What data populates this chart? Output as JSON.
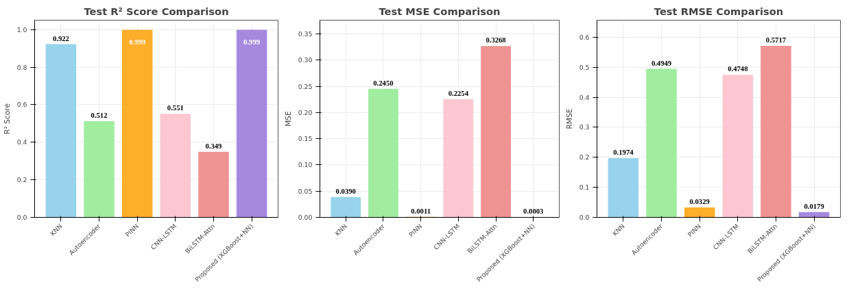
{
  "chart_data": [
    {
      "type": "bar",
      "title": "Test R² Score Comparison",
      "ylabel": "R² Score",
      "categories": [
        "KNN",
        "Autoencoder",
        "PINN",
        "CNN-LSTM",
        "BiLSTM-Attn",
        "Proposed (XGBoost+NN)"
      ],
      "values": [
        0.922,
        0.512,
        0.999,
        0.551,
        0.349,
        0.999
      ],
      "value_labels": [
        "0.922",
        "0.512",
        "0.999",
        "0.551",
        "0.349",
        "0.999"
      ],
      "colors": [
        "#97d3ec",
        "#a0eda0",
        "#fdae2a",
        "#fcc7d1",
        "#f09393",
        "#a689df"
      ],
      "ylim": [
        0,
        1.05
      ],
      "yticks": [
        {
          "value": 0,
          "label": "0.0"
        },
        0.2,
        0.4,
        0.6,
        0.8,
        {
          "value": 1,
          "label": "1.0"
        }
      ],
      "grid": true
    },
    {
      "type": "bar",
      "title": "Test MSE Comparison",
      "ylabel": "MSE",
      "categories": [
        "KNN",
        "Autoencoder",
        "PINN",
        "CNN-LSTM",
        "BiLSTM-Attn",
        "Proposed (XGBoost+NN)"
      ],
      "values": [
        0.039,
        0.245,
        0.0011,
        0.2254,
        0.3268,
        0.0003
      ],
      "value_labels": [
        "0.0390",
        "0.2450",
        "0.0011",
        "0.2254",
        "0.3268",
        "0.0003"
      ],
      "colors": [
        "#97d3ec",
        "#a0eda0",
        "#fdae2a",
        "#fcc7d1",
        "#f09393",
        "#a689df"
      ],
      "ylim": [
        0,
        0.376
      ],
      "yticks": [
        {
          "value": 0,
          "label": "0.00"
        },
        0.05,
        {
          "value": 0.1,
          "label": "0.10"
        },
        0.15,
        {
          "value": 0.2,
          "label": "0.20"
        },
        0.25,
        {
          "value": 0.3,
          "label": "0.30"
        },
        0.35
      ],
      "grid": true
    },
    {
      "type": "bar",
      "title": "Test RMSE Comparison",
      "ylabel": "RMSE",
      "categories": [
        "KNN",
        "Autoencoder",
        "PINN",
        "CNN-LSTM",
        "BiLSTM-Attn",
        "Proposed (XGBoost+NN)"
      ],
      "values": [
        0.1974,
        0.4949,
        0.0329,
        0.4748,
        0.5717,
        0.0179
      ],
      "value_labels": [
        "0.1974",
        "0.4949",
        "0.0329",
        "0.4748",
        "0.5717",
        "0.0179"
      ],
      "colors": [
        "#97d3ec",
        "#a0eda0",
        "#fdae2a",
        "#fcc7d1",
        "#f09393",
        "#a689df"
      ],
      "ylim": [
        0,
        0.657
      ],
      "yticks": [
        {
          "value": 0,
          "label": "0.0"
        },
        0.1,
        0.2,
        0.3,
        0.4,
        0.5,
        0.6
      ],
      "grid": true
    }
  ]
}
